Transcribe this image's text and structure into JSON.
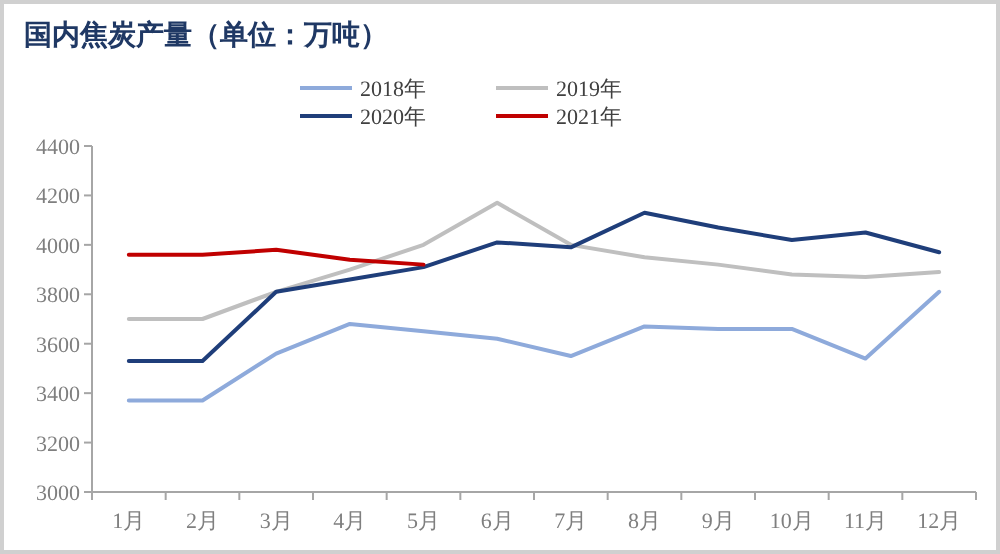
{
  "chart_data": {
    "type": "line",
    "title": "国内焦炭产量（单位：万吨）",
    "categories": [
      "1月",
      "2月",
      "3月",
      "4月",
      "5月",
      "6月",
      "7月",
      "8月",
      "9月",
      "10月",
      "11月",
      "12月"
    ],
    "series": [
      {
        "name": "2018年",
        "color": "#8eaadb",
        "values": [
          3370,
          3370,
          3560,
          3680,
          3650,
          3620,
          3550,
          3670,
          3660,
          3660,
          3540,
          3810
        ]
      },
      {
        "name": "2019年",
        "color": "#bfbfbf",
        "values": [
          3700,
          3700,
          3810,
          3900,
          4000,
          4170,
          4000,
          3950,
          3920,
          3880,
          3870,
          3890
        ]
      },
      {
        "name": "2020年",
        "color": "#1f3e7a",
        "values": [
          3530,
          3530,
          3810,
          3860,
          3910,
          4010,
          3990,
          4130,
          4070,
          4020,
          4050,
          3970
        ]
      },
      {
        "name": "2021年",
        "color": "#c00000",
        "values": [
          3960,
          3960,
          3980,
          3940,
          3920,
          null,
          null,
          null,
          null,
          null,
          null,
          null
        ]
      }
    ],
    "ylim": [
      3000,
      4400
    ],
    "yticks": [
      3000,
      3200,
      3400,
      3600,
      3800,
      4000,
      4200,
      4400
    ],
    "legend": "top",
    "grid": false,
    "marker": "none",
    "line_style": "solid"
  }
}
